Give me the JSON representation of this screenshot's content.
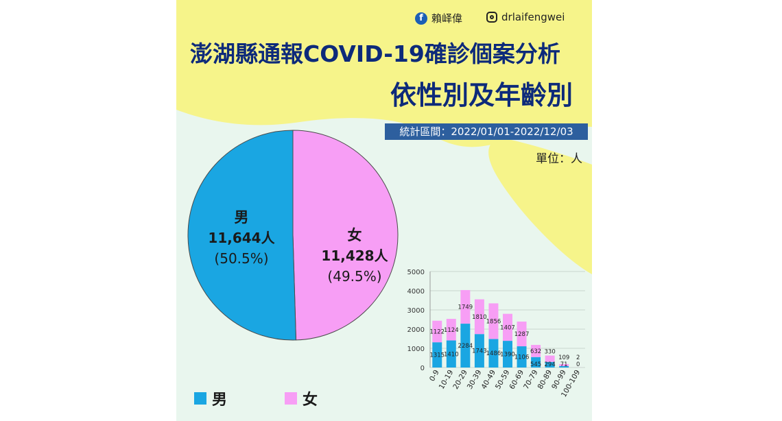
{
  "header": {
    "fb_name": "賴峄偉",
    "ig_name": "drlaifengwei",
    "title_line1": "澎湖縣通報COVID-19確診個案分析",
    "title_line2": "依性別及年齡別",
    "period": "統計區間：2022/01/01-2022/12/03",
    "unit": "單位：人"
  },
  "colors": {
    "male": "#1aa6e2",
    "female": "#f79ef5",
    "title": "#0d2a7a",
    "yellow": "#f6f48a"
  },
  "icons": [
    "facebook-icon",
    "instagram-icon"
  ],
  "chart_data": [
    {
      "type": "pie",
      "slices": [
        {
          "label": "男",
          "count_text": "11,644人",
          "pct_text": "(50.5%)",
          "value": 11644,
          "percent": 50.5
        },
        {
          "label": "女",
          "count_text": "11,428人",
          "pct_text": "(49.5%)",
          "value": 11428,
          "percent": 49.5
        }
      ]
    },
    {
      "type": "bar",
      "stacked": true,
      "categories": [
        "0-9",
        "10-19",
        "20-29",
        "30-39",
        "40-49",
        "50-59",
        "60-69",
        "70-79",
        "80-89",
        "90-99",
        "100-109"
      ],
      "series": [
        {
          "name": "男",
          "values": [
            1315,
            1410,
            2284,
            1743,
            1486,
            1390,
            1106,
            545,
            294,
            71,
            0
          ]
        },
        {
          "name": "女",
          "values": [
            1122,
            1124,
            1749,
            1810,
            1856,
            1407,
            1287,
            632,
            330,
            109,
            2
          ]
        }
      ],
      "ylim": [
        0,
        5000
      ],
      "yticks": [
        0,
        1000,
        2000,
        3000,
        4000,
        5000
      ],
      "legend": [
        {
          "label": "男"
        },
        {
          "label": "女"
        }
      ]
    }
  ]
}
